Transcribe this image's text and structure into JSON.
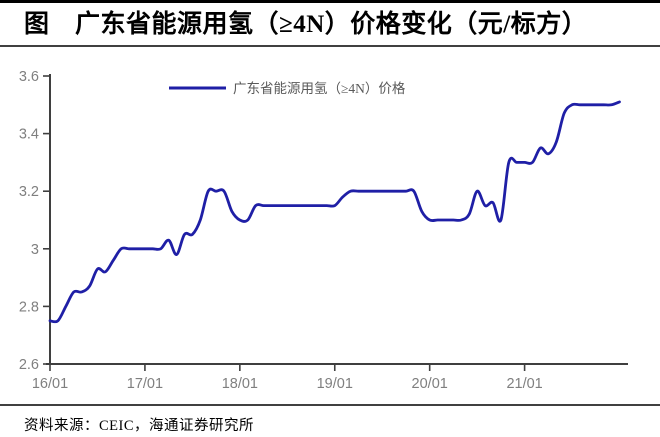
{
  "page": {
    "title": "图　广东省能源用氢（≥4N）价格变化（元/标方）",
    "source": "资料来源：CEIC，海通证券研究所"
  },
  "colors": {
    "line": "#1f1fa6",
    "axis": "#3f3f3f",
    "tick_label": "#7f7f7f",
    "legend_text": "#595959",
    "divider": "#404040",
    "top_rule": "#000000"
  },
  "chart_data": {
    "type": "line",
    "title": "广东省能源用氢（≥4N）价格变化（元/标方）",
    "xlabel": "",
    "ylabel": "",
    "ylim": [
      2.6,
      3.6
    ],
    "y_tick_step": 0.2,
    "grid": false,
    "legend_position": "top-center",
    "legend": [
      {
        "label": "广东省能源用氢（≥4N）价格",
        "color": "#1f1fa6"
      }
    ],
    "x_unit": "month",
    "x_start": "2016-01",
    "x_end": "2022-01",
    "x_tick_labels": [
      "16/01",
      "17/01",
      "18/01",
      "19/01",
      "20/01",
      "21/01"
    ],
    "x_tick_month_index": [
      0,
      12,
      24,
      36,
      48,
      60
    ],
    "y_tick_labels": [
      "3.6",
      "3.4",
      "3.2",
      "3",
      "2.8",
      "2.6"
    ],
    "series": [
      {
        "name": "广东省能源用氢（≥4N）价格",
        "unit": "元/标方",
        "monthly_values": [
          2.75,
          2.75,
          2.8,
          2.85,
          2.85,
          2.87,
          2.93,
          2.92,
          2.96,
          3.0,
          3.0,
          3.0,
          3.0,
          3.0,
          3.0,
          3.03,
          2.98,
          3.05,
          3.05,
          3.1,
          3.2,
          3.2,
          3.2,
          3.13,
          3.1,
          3.1,
          3.15,
          3.15,
          3.15,
          3.15,
          3.15,
          3.15,
          3.15,
          3.15,
          3.15,
          3.15,
          3.15,
          3.18,
          3.2,
          3.2,
          3.2,
          3.2,
          3.2,
          3.2,
          3.2,
          3.2,
          3.2,
          3.13,
          3.1,
          3.1,
          3.1,
          3.1,
          3.1,
          3.12,
          3.2,
          3.15,
          3.16,
          3.1,
          3.3,
          3.3,
          3.3,
          3.3,
          3.35,
          3.33,
          3.37,
          3.47,
          3.5,
          3.5,
          3.5,
          3.5,
          3.5,
          3.5,
          3.51
        ]
      }
    ]
  }
}
